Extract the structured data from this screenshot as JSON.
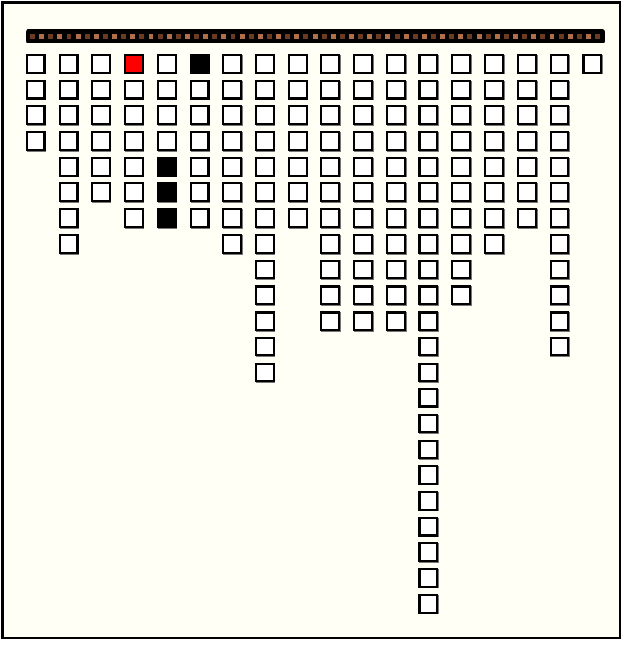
{
  "game": {
    "colors": {
      "background": "#fffff5",
      "cell": "#ffffff",
      "border": "#000000",
      "red": "#ff0000",
      "black": "#000000",
      "bar_dark": "#6b3a22",
      "bar_light": "#b06f48"
    },
    "column_heights": [
      4,
      8,
      6,
      7,
      7,
      7,
      8,
      13,
      7,
      11,
      11,
      11,
      22,
      10,
      8,
      7,
      12,
      1
    ],
    "red_cells": [
      {
        "col": 3,
        "row": 0
      }
    ],
    "black_cells": [
      {
        "col": 5,
        "row": 0
      },
      {
        "col": 4,
        "row": 4
      },
      {
        "col": 4,
        "row": 5
      },
      {
        "col": 4,
        "row": 6
      }
    ]
  }
}
